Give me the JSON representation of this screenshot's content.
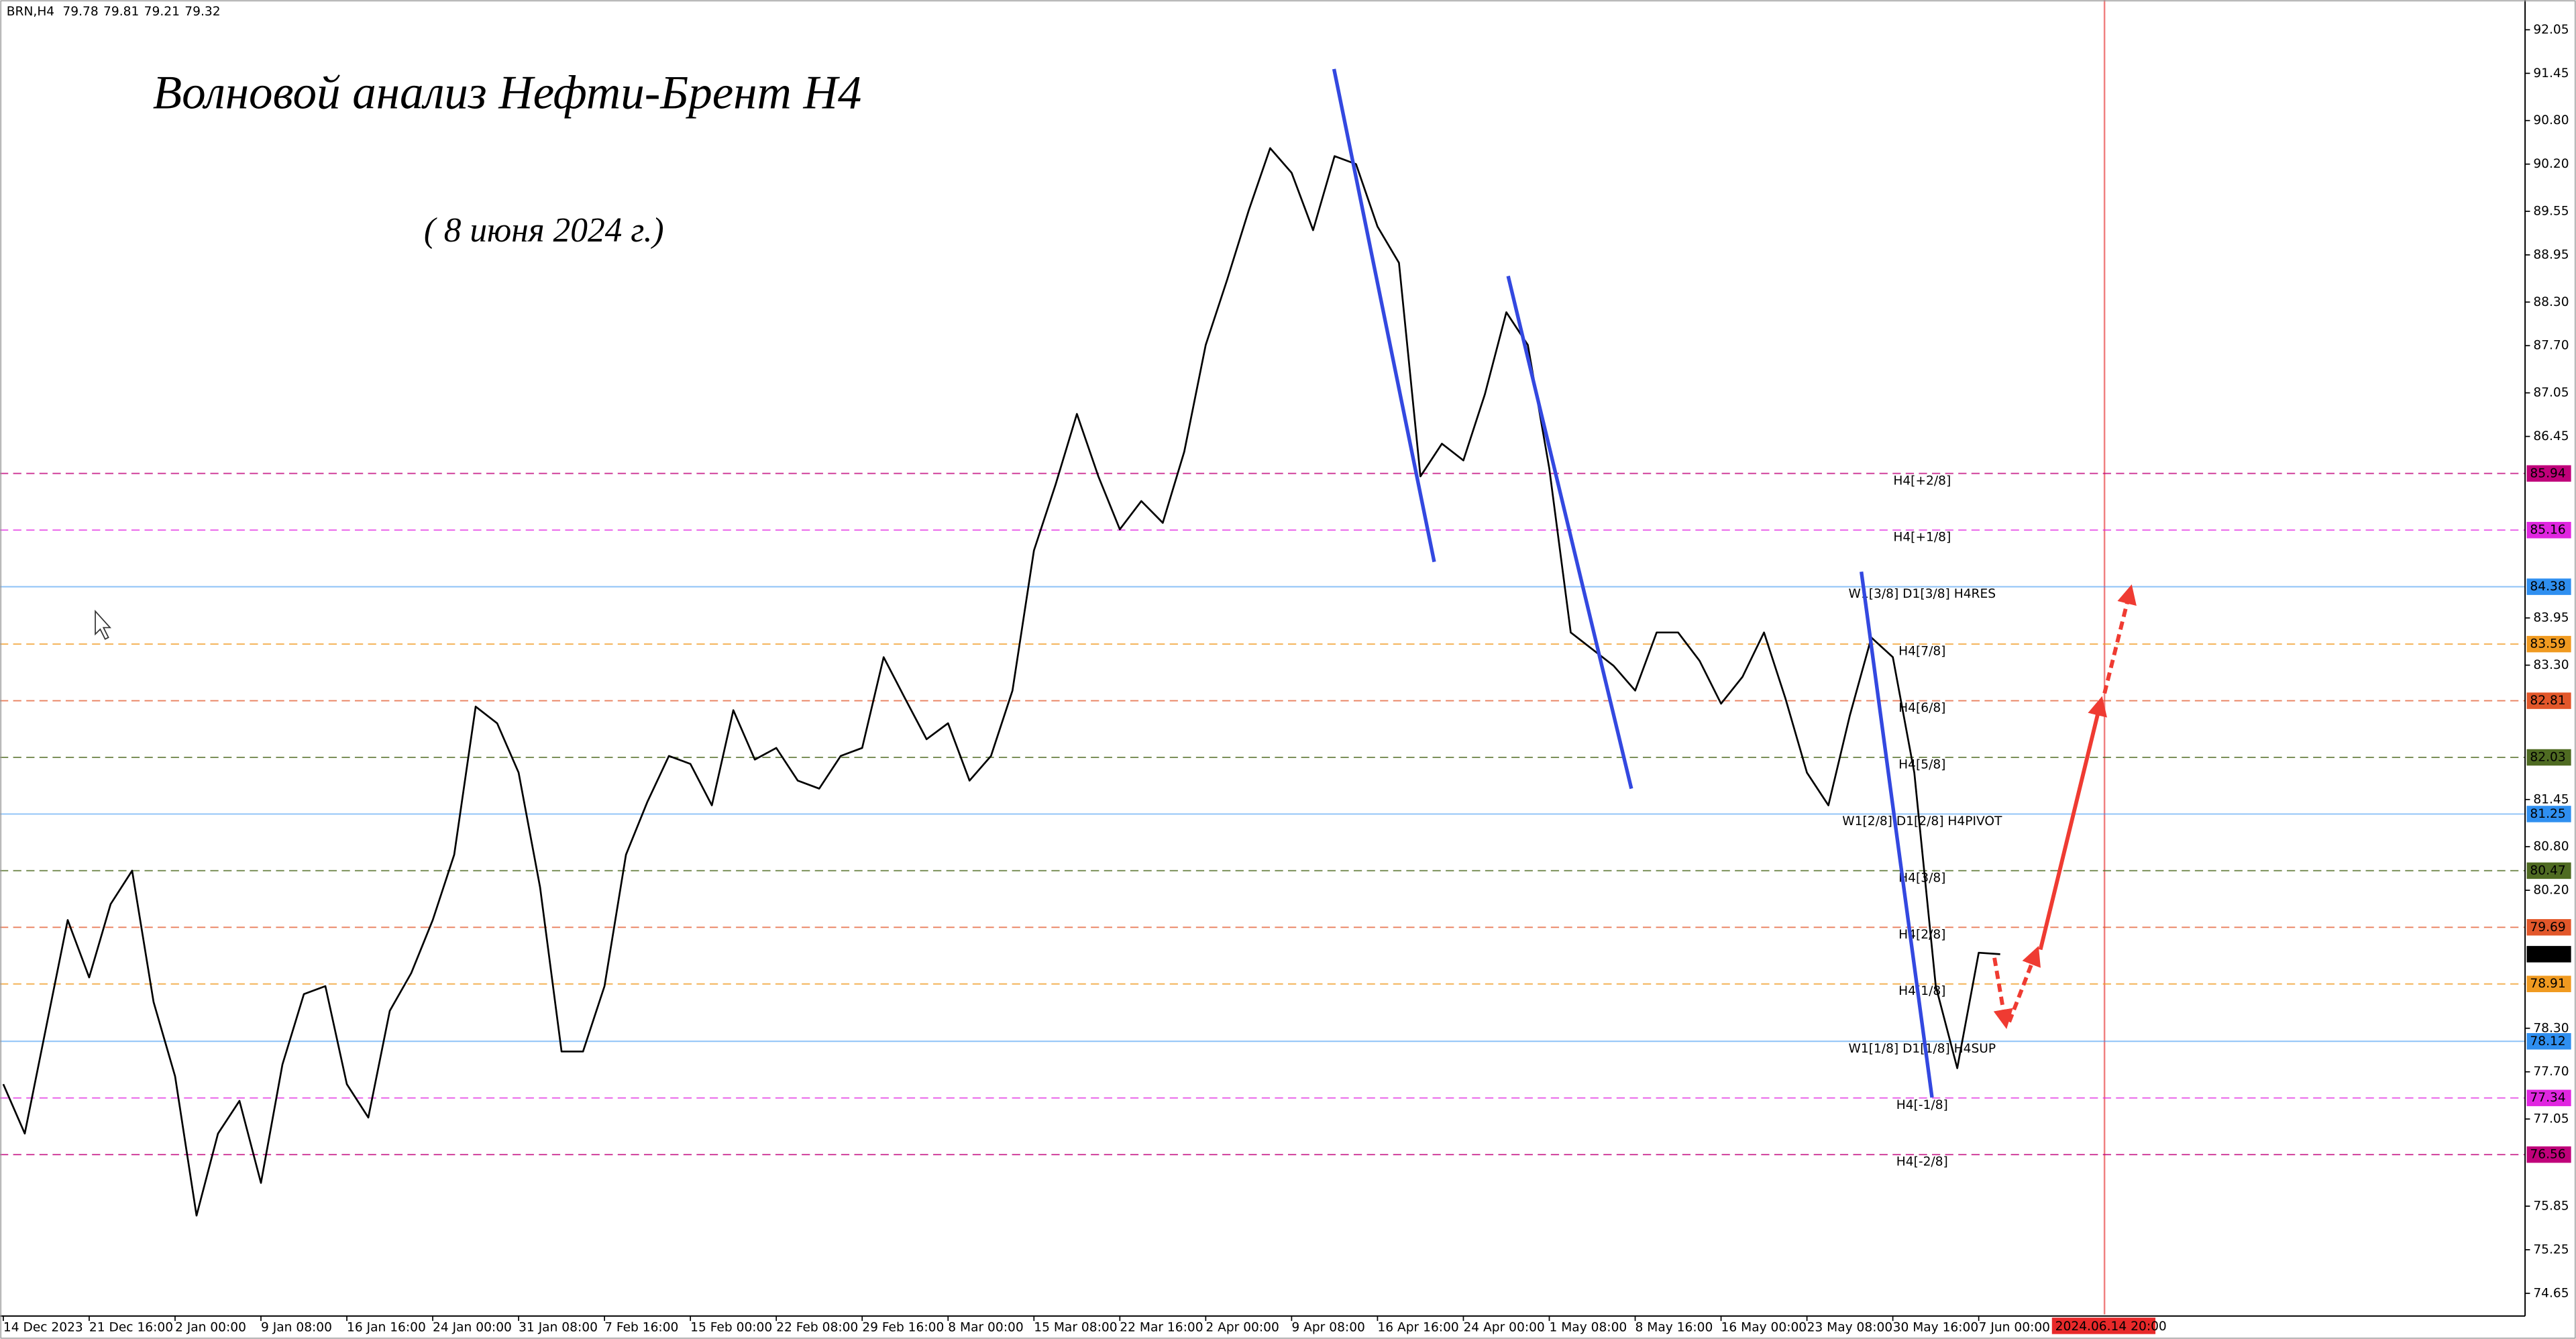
{
  "chart_data": {
    "type": "line",
    "title": "Волновой анализ Нефти-Брент H4",
    "subtitle": "( 8 июня 2024 г.)",
    "header": {
      "symbol": "BRN,H4",
      "open": 79.78,
      "high": 79.81,
      "low": 79.21,
      "close": 79.32
    },
    "color": "#000000",
    "categories": [
      "14 Dec 2023",
      null,
      null,
      null,
      "21 Dec 16:00",
      null,
      null,
      null,
      "2 Jan 00:00",
      null,
      null,
      null,
      "9 Jan 08:00",
      null,
      null,
      null,
      "16 Jan 16:00",
      null,
      null,
      null,
      "24 Jan 00:00",
      null,
      null,
      null,
      "31 Jan 08:00",
      null,
      null,
      null,
      "7 Feb 16:00",
      null,
      null,
      null,
      "15 Feb 00:00",
      null,
      null,
      null,
      "22 Feb 08:00",
      null,
      null,
      null,
      "29 Feb 16:00",
      null,
      null,
      null,
      "8 Mar 00:00",
      null,
      null,
      null,
      "15 Mar 08:00",
      null,
      null,
      null,
      "22 Mar 16:00",
      null,
      null,
      null,
      "2 Apr 00:00",
      null,
      null,
      null,
      "9 Apr 08:00",
      null,
      null,
      null,
      "16 Apr 16:00",
      null,
      null,
      null,
      "24 Apr 00:00",
      null,
      null,
      null,
      "1 May 08:00",
      null,
      null,
      null,
      "8 May 16:00",
      null,
      null,
      null,
      "16 May 00:00",
      null,
      null,
      null,
      "23 May 08:00",
      null,
      null,
      null,
      "30 May 16:00",
      null,
      null,
      null,
      "7 Jun 00:00",
      null
    ],
    "values": [
      77.53,
      76.85,
      78.32,
      79.79,
      79.0,
      80.01,
      80.47,
      78.66,
      77.64,
      75.72,
      76.85,
      77.3,
      76.17,
      77.8,
      78.77,
      78.88,
      77.53,
      77.07,
      78.54,
      79.06,
      79.79,
      80.69,
      82.73,
      82.5,
      81.82,
      80.24,
      77.98,
      77.98,
      78.88,
      80.69,
      81.42,
      82.05,
      81.94,
      81.37,
      82.68,
      82.0,
      82.16,
      81.71,
      81.6,
      82.05,
      82.16,
      83.41,
      82.84,
      82.28,
      82.5,
      81.71,
      82.05,
      82.95,
      84.88,
      85.78,
      86.76,
      85.9,
      85.17,
      85.56,
      85.26,
      86.24,
      87.71,
      88.61,
      89.56,
      90.42,
      90.08,
      89.29,
      90.31,
      90.2,
      89.34,
      88.84,
      85.9,
      86.35,
      86.12,
      87.03,
      88.16,
      87.71,
      86.01,
      83.75,
      83.52,
      83.29,
      82.95,
      83.75,
      83.75,
      83.36,
      82.77,
      83.14,
      83.75,
      82.84,
      81.82,
      81.37,
      82.61,
      83.68,
      83.41,
      81.82,
      78.88,
      77.75,
      79.34,
      79.32
    ],
    "ylim": [
      74.36,
      92.46
    ],
    "yticks": [
      {
        "value": 92.05,
        "label": "92.05"
      },
      {
        "value": 91.45,
        "label": "91.45"
      },
      {
        "value": 90.8,
        "label": "90.80"
      },
      {
        "value": 90.2,
        "label": "90.20"
      },
      {
        "value": 89.55,
        "label": "89.55"
      },
      {
        "value": 88.95,
        "label": "88.95"
      },
      {
        "value": 88.3,
        "label": "88.30"
      },
      {
        "value": 87.7,
        "label": "87.70"
      },
      {
        "value": 87.05,
        "label": "87.05"
      },
      {
        "value": 86.45,
        "label": "86.45"
      },
      {
        "value": 83.95,
        "label": "83.95"
      },
      {
        "value": 83.3,
        "label": "83.30"
      },
      {
        "value": 81.45,
        "label": "81.45"
      },
      {
        "value": 80.8,
        "label": "80.80"
      },
      {
        "value": 80.2,
        "label": "80.20"
      },
      {
        "value": 78.3,
        "label": "78.30"
      },
      {
        "value": 77.7,
        "label": "77.70"
      },
      {
        "value": 77.05,
        "label": "77.05"
      },
      {
        "value": 75.85,
        "label": "75.85"
      },
      {
        "value": 75.25,
        "label": "75.25"
      },
      {
        "value": 74.65,
        "label": "74.65"
      }
    ],
    "levels": [
      {
        "name": "H4[+2/8]",
        "value": 85.94,
        "color": "#c0007a",
        "dashed": true
      },
      {
        "name": "H4[+1/8]",
        "value": 85.16,
        "color": "#e026e0",
        "dashed": true
      },
      {
        "name": "W1[3/8] D1[3/8] H4RES",
        "value": 84.38,
        "color": "#2f8ff0",
        "dashed": false
      },
      {
        "name": "H4[7/8]",
        "value": 83.59,
        "color": "#f09a20",
        "dashed": true
      },
      {
        "name": "H4[6/8]",
        "value": 82.81,
        "color": "#e2572a",
        "dashed": true
      },
      {
        "name": "H4[5/8]",
        "value": 82.03,
        "color": "#4f6b22",
        "dashed": true
      },
      {
        "name": "W1[2/8] D1[2/8] H4PIVOT",
        "value": 81.25,
        "color": "#2f8ff0",
        "dashed": false
      },
      {
        "name": "H4[3/8]",
        "value": 80.47,
        "color": "#4f6b22",
        "dashed": true
      },
      {
        "name": "H4[2/8]",
        "value": 79.69,
        "color": "#e2572a",
        "dashed": true
      },
      {
        "name": "H4[1/8]",
        "value": 78.91,
        "color": "#f09a20",
        "dashed": true
      },
      {
        "name": "W1[1/8] D1[1/8] H4SUP",
        "value": 78.12,
        "color": "#2f8ff0",
        "dashed": false
      },
      {
        "name": "H4[-1/8]",
        "value": 77.34,
        "color": "#e026e0",
        "dashed": true
      },
      {
        "name": "H4[-2/8]",
        "value": 76.56,
        "color": "#c0007a",
        "dashed": true
      }
    ],
    "last_price": 79.32,
    "marker_time": "2024.06.14 20:00"
  }
}
